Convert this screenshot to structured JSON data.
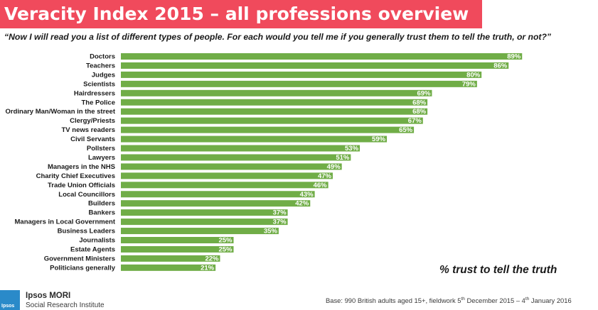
{
  "header": {
    "title": "Veracity Index 2015 – all professions overview",
    "question": "“Now I will read you a list of different types of people. For each would you tell me if you generally trust them to tell the truth, or not?”"
  },
  "chart_data": {
    "type": "bar",
    "orientation": "horizontal",
    "categories": [
      "Doctors",
      "Teachers",
      "Judges",
      "Scientists",
      "Hairdressers",
      "The Police",
      "Ordinary Man/Woman in the street",
      "Clergy/Priests",
      "TV news readers",
      "Civil Servants",
      "Pollsters",
      "Lawyers",
      "Managers in the NHS",
      "Charity Chief Executives",
      "Trade Union Officials",
      "Local Councillors",
      "Builders",
      "Bankers",
      "Managers in Local Government",
      "Business Leaders",
      "Journalists",
      "Estate Agents",
      "Government Ministers",
      "Politicians generally"
    ],
    "values": [
      89,
      86,
      80,
      79,
      69,
      68,
      68,
      67,
      65,
      59,
      53,
      51,
      49,
      47,
      46,
      43,
      42,
      37,
      37,
      35,
      25,
      25,
      22,
      21
    ],
    "value_labels": [
      "89%",
      "86%",
      "80%",
      "79%",
      "69%",
      "68%",
      "68%",
      "67%",
      "65%",
      "59%",
      "53%",
      "51%",
      "49%",
      "47%",
      "46%",
      "43%",
      "42%",
      "37%",
      "37%",
      "35%",
      "25%",
      "25%",
      "22%",
      "21%"
    ],
    "xlim": [
      0,
      100
    ],
    "axis_caption": "% trust to tell the truth",
    "color": "#70ad47",
    "grid": false
  },
  "colors": {
    "title_background": "#f04a5c",
    "bar": "#70ad47",
    "logo": "#2a8ac9"
  },
  "footer": {
    "logo_icon": "ipsos-logo-icon",
    "logo_text": "Ipsos",
    "brand_name": "Ipsos MORI",
    "brand_sub": "Social Research Institute",
    "base_prefix": "Base: 990 British adults aged 15+, fieldwork 5",
    "base_sup1": "th",
    "base_mid": " December 2015 – 4",
    "base_sup2": "th",
    "base_suffix": " January 2016"
  }
}
